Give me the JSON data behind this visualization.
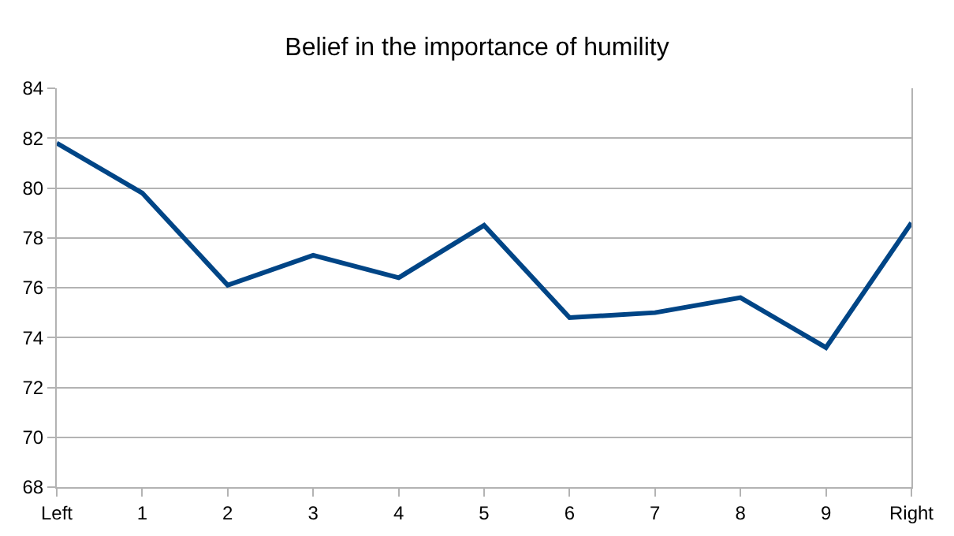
{
  "chart_data": {
    "type": "line",
    "title": "Belief in the importance of humility",
    "categories": [
      "Left",
      "1",
      "2",
      "3",
      "4",
      "5",
      "6",
      "7",
      "8",
      "9",
      "Right"
    ],
    "series": [
      {
        "color": "#004586",
        "values": [
          81.8,
          79.8,
          76.1,
          77.3,
          76.4,
          78.5,
          74.8,
          75.0,
          75.6,
          73.6,
          78.6
        ]
      }
    ],
    "ylim": [
      68,
      84
    ],
    "yticks": [
      68,
      70,
      72,
      74,
      76,
      78,
      80,
      82,
      84
    ],
    "grid": "y",
    "legend": false,
    "marker": "none",
    "line_style": "solid"
  }
}
